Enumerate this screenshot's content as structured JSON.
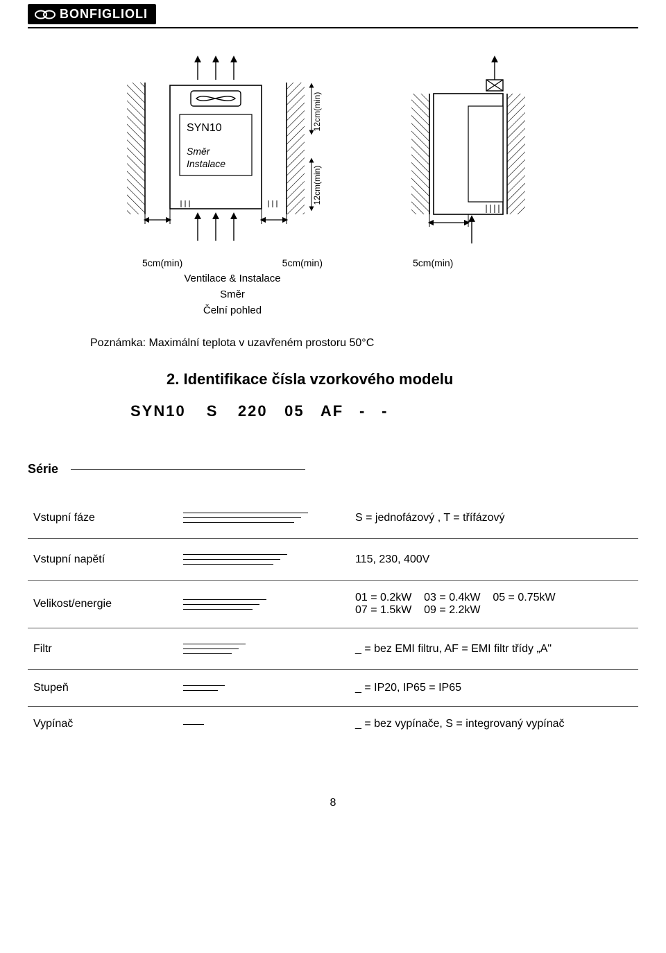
{
  "brand": "BONFIGLIOLI",
  "diagram1": {
    "device_label": "SYN10",
    "direction_line1": "Směr",
    "direction_line2": "Instalace",
    "gap_left": "5cm(min)",
    "gap_right": "5cm(min)",
    "caption_line1": "Ventilace & Instalace",
    "caption_line2": "Směr",
    "caption_line3": "Čelní pohled",
    "top_gap": "12cm(min)",
    "bottom_gap": "12cm(min)"
  },
  "diagram2": {
    "bottom_dim": "5cm(min)"
  },
  "note": "Poznámka: Maximální teplota v uzavřeném prostoru 50°C",
  "heading": "2. Identifikace čísla vzorkového modelu",
  "model_code": {
    "p1": "SYN10",
    "p2": "S",
    "p3": "220",
    "p4": "05",
    "p5": "AF",
    "p6": "-",
    "p7": "-"
  },
  "series_label": "Série",
  "legend": [
    {
      "label": "Vstupní fáze",
      "lines": 3,
      "desc_html": "S = jednofázový , T = třífázový"
    },
    {
      "label": "Vstupní napětí",
      "lines": 3,
      "desc_html": "115, 230, 400V"
    },
    {
      "label": "Velikost/energie",
      "lines": 3,
      "desc_html": "01 = 0.2kW&nbsp;&nbsp;&nbsp;&nbsp;03 = 0.4kW&nbsp;&nbsp;&nbsp;&nbsp;05 = 0.75kW<br>07 = 1.5kW&nbsp;&nbsp;&nbsp;&nbsp;09 = 2.2kW"
    },
    {
      "label": "Filtr",
      "lines": 3,
      "desc_html": "_ = bez EMI filtru, AF = EMI filtr třídy „A\""
    },
    {
      "label": "Stupeň",
      "lines": 2,
      "desc_html": "_ = IP20, IP65 = IP65"
    },
    {
      "label": "Vypínač",
      "lines": 1,
      "desc_html": "_ = bez vypínače, S = integrovaný vypínač"
    }
  ],
  "page_number": "8",
  "colors": {
    "stroke": "#000000",
    "hatch": "#000000",
    "text": "#000000",
    "bg": "#ffffff"
  }
}
